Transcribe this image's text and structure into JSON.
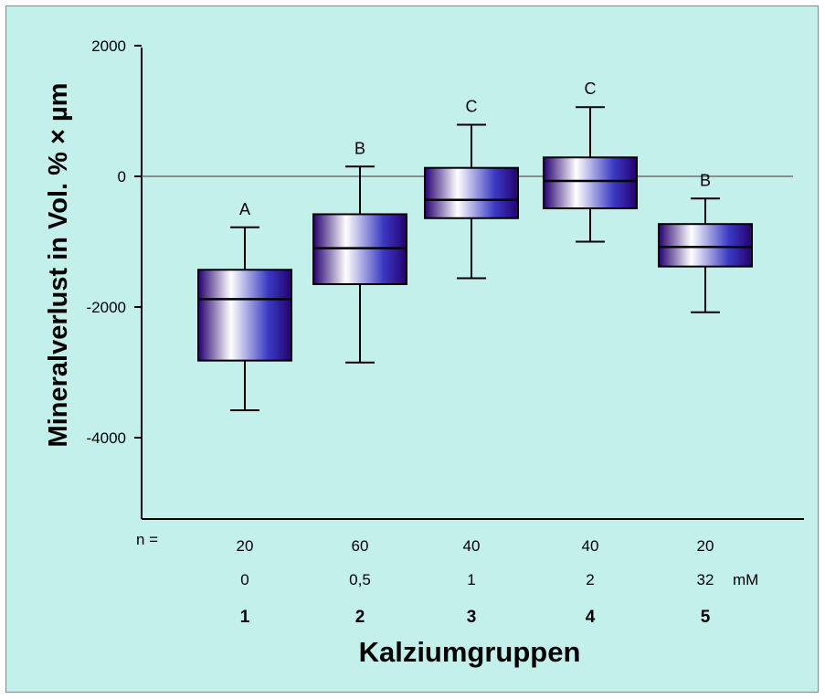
{
  "chart_data": {
    "type": "box",
    "ylabel": "Mineralverlust in Vol. % × µm",
    "xlabel": "Kalziumgruppen",
    "ylim": [
      -5300,
      2000
    ],
    "yticks": [
      2000,
      0,
      -2000,
      -4000
    ],
    "ytick_labels": [
      "2000",
      "0",
      "-2000",
      "-4000"
    ],
    "reference_line": 0,
    "row_labels": {
      "n": "n =",
      "unit": "mM"
    },
    "groups": [
      {
        "id": "1",
        "n": "20",
        "concentration": "0",
        "letter": "A",
        "whisker_low": -3580,
        "q1": -2820,
        "median": -1880,
        "q3": -1430,
        "whisker_high": -780
      },
      {
        "id": "2",
        "n": "60",
        "concentration": "0,5",
        "letter": "B",
        "whisker_low": -2850,
        "q1": -1650,
        "median": -1100,
        "q3": -580,
        "whisker_high": 150
      },
      {
        "id": "3",
        "n": "40",
        "concentration": "1",
        "letter": "C",
        "whisker_low": -1560,
        "q1": -640,
        "median": -360,
        "q3": 130,
        "whisker_high": 790
      },
      {
        "id": "4",
        "n": "40",
        "concentration": "2",
        "letter": "C",
        "whisker_low": -1000,
        "q1": -490,
        "median": -70,
        "q3": 290,
        "whisker_high": 1060
      },
      {
        "id": "5",
        "n": "20",
        "concentration": "32",
        "letter": "B",
        "whisker_low": -2080,
        "q1": -1380,
        "median": -1080,
        "q3": -730,
        "whisker_high": -340
      }
    ]
  },
  "colors": {
    "background": "#c4f0ec",
    "box_dark": "#25006e",
    "box_mid": "#3a3ac4",
    "box_light": "#ffffff"
  }
}
